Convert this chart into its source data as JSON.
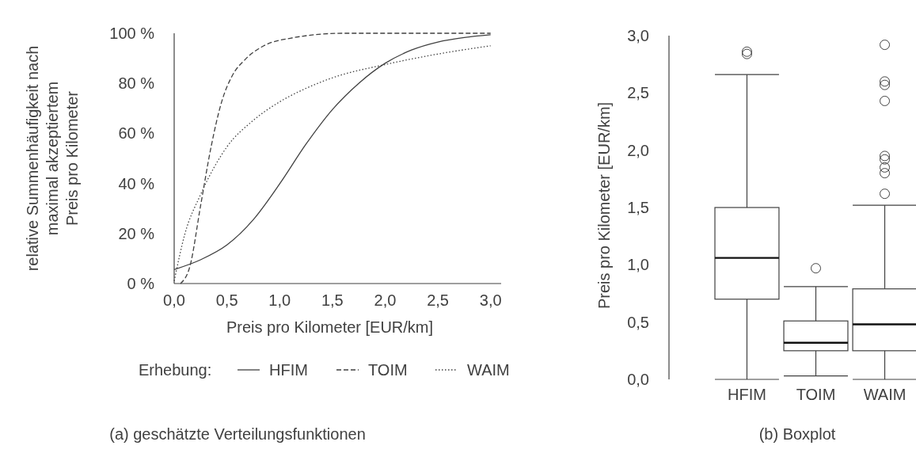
{
  "chart_data": [
    {
      "type": "line",
      "title": "(a) geschätzte Verteilungsfunktionen",
      "xlabel": "Preis pro Kilometer [EUR/km]",
      "ylabel": "relative Summenhäufigkeit nach\nmaximal akzeptiertem\nPreis pro Kilometer",
      "legend_title": "Erhebung:",
      "legend": "bottom",
      "xlim": [
        0,
        3.1
      ],
      "ylim": [
        0,
        100
      ],
      "xticks": [
        {
          "value": 0,
          "label": "0,0"
        },
        {
          "value": 0.5,
          "label": "0,5"
        },
        {
          "value": 1,
          "label": "1,0"
        },
        {
          "value": 1.5,
          "label": "1,5"
        },
        {
          "value": 2,
          "label": "2,0"
        },
        {
          "value": 2.5,
          "label": "2,5"
        },
        {
          "value": 3,
          "label": "3,0"
        }
      ],
      "yticks": [
        {
          "value": 0,
          "label": "0 %"
        },
        {
          "value": 20,
          "label": "20 %"
        },
        {
          "value": 40,
          "label": "40 %"
        },
        {
          "value": 60,
          "label": "60 %"
        },
        {
          "value": 80,
          "label": "80 %"
        },
        {
          "value": 100,
          "label": "100 %"
        }
      ],
      "series": [
        {
          "name": "HFIM",
          "color": "#404040",
          "line_style": "solid",
          "x": [
            0,
            0.25,
            0.5,
            0.75,
            1,
            1.25,
            1.5,
            1.75,
            2,
            2.25,
            2.5,
            2.75,
            3
          ],
          "values": [
            5.6,
            9.5,
            15.4,
            25.5,
            39.8,
            55.7,
            69.5,
            80,
            88,
            93.3,
            96.5,
            98.3,
            99.4
          ]
        },
        {
          "name": "TOIM",
          "color": "#404040",
          "line_style": "dashed",
          "x": [
            0.06,
            0.15,
            0.25,
            0.35,
            0.45,
            0.55,
            0.675,
            0.85,
            1.1,
            1.6,
            3
          ],
          "values": [
            0,
            7,
            31,
            54.6,
            72.6,
            83,
            89.6,
            95,
            98,
            100,
            100
          ]
        },
        {
          "name": "WAIM",
          "color": "#404040",
          "line_style": "dotted",
          "x": [
            0,
            0.1,
            0.25,
            0.5,
            0.75,
            1,
            1.25,
            1.5,
            2,
            2.5,
            3
          ],
          "values": [
            1,
            19.6,
            35.5,
            54.6,
            65.2,
            72.6,
            78,
            82.2,
            87.5,
            91.7,
            95
          ]
        }
      ]
    },
    {
      "type": "box",
      "title": "(b) Boxplot",
      "ylabel": "Preis pro Kilometer [EUR/km]",
      "categories": [
        "HFIM",
        "TOIM",
        "WAIM"
      ],
      "color": "#404040",
      "ylim": [
        0,
        3
      ],
      "yticks": [
        {
          "value": 0,
          "label": "0,0"
        },
        {
          "value": 0.5,
          "label": "0,5"
        },
        {
          "value": 1,
          "label": "1,0"
        },
        {
          "value": 1.5,
          "label": "1,5"
        },
        {
          "value": 2,
          "label": "2,0"
        },
        {
          "value": 2.5,
          "label": "2,5"
        },
        {
          "value": 3,
          "label": "3,0"
        }
      ],
      "boxes": [
        {
          "low": 0,
          "q1": 0.7,
          "median": 1.06,
          "q3": 1.5,
          "high": 2.66,
          "outliers": [
            2.86,
            2.84
          ]
        },
        {
          "low": 0.03,
          "q1": 0.25,
          "median": 0.32,
          "q3": 0.51,
          "high": 0.81,
          "outliers": [
            0.97
          ]
        },
        {
          "low": 0,
          "q1": 0.25,
          "median": 0.48,
          "q3": 0.79,
          "high": 1.52,
          "outliers": [
            2.92,
            2.6,
            2.57,
            2.43,
            1.95,
            1.92,
            1.85,
            1.8,
            1.62
          ]
        }
      ]
    }
  ]
}
